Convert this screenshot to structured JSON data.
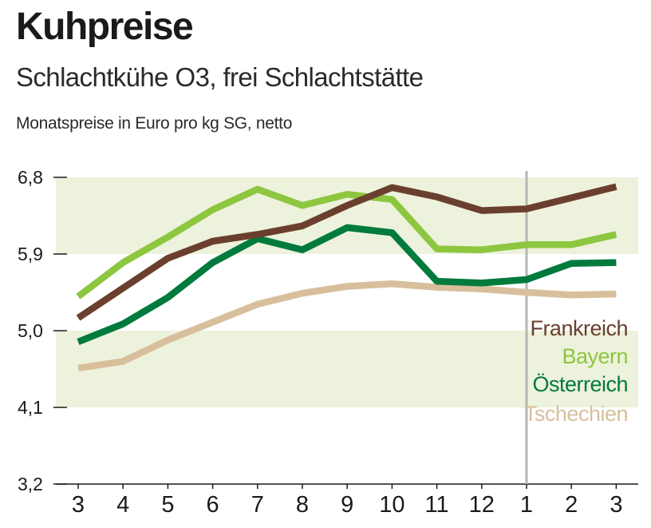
{
  "chart_data": {
    "type": "line",
    "title": "Kuhpreise",
    "subtitle": "Schlachtkühe O3, frei Schlachtstätte",
    "ylabel": "Monatspreise in Euro pro kg SG, netto",
    "categories": [
      "3",
      "4",
      "5",
      "6",
      "7",
      "8",
      "9",
      "10",
      "11",
      "12",
      "1",
      "2",
      "3"
    ],
    "y_ticks": [
      "6,8",
      "5,9",
      "5,0",
      "4,1",
      "3,2"
    ],
    "ylim": [
      3.2,
      6.8
    ],
    "separator_after_category_index": 10,
    "series": [
      {
        "name": "Frankreich",
        "color": "#6b3f2e",
        "values": [
          5.15,
          5.5,
          5.85,
          6.05,
          6.13,
          6.23,
          6.47,
          6.68,
          6.57,
          6.41,
          6.43,
          6.56,
          6.69
        ]
      },
      {
        "name": "Bayern",
        "color": "#8dc63f",
        "values": [
          5.4,
          5.8,
          6.1,
          6.42,
          6.66,
          6.47,
          6.6,
          6.54,
          5.96,
          5.95,
          6.01,
          6.01,
          6.13
        ]
      },
      {
        "name": "Österreich",
        "color": "#007a3d",
        "values": [
          4.87,
          5.08,
          5.39,
          5.8,
          6.08,
          5.95,
          6.21,
          6.15,
          5.58,
          5.56,
          5.6,
          5.79,
          5.8
        ]
      },
      {
        "name": "Tschechien",
        "color": "#d8bf9c",
        "values": [
          4.56,
          4.64,
          4.89,
          5.1,
          5.31,
          5.44,
          5.52,
          5.55,
          5.51,
          5.49,
          5.45,
          5.42,
          5.43
        ]
      }
    ]
  }
}
